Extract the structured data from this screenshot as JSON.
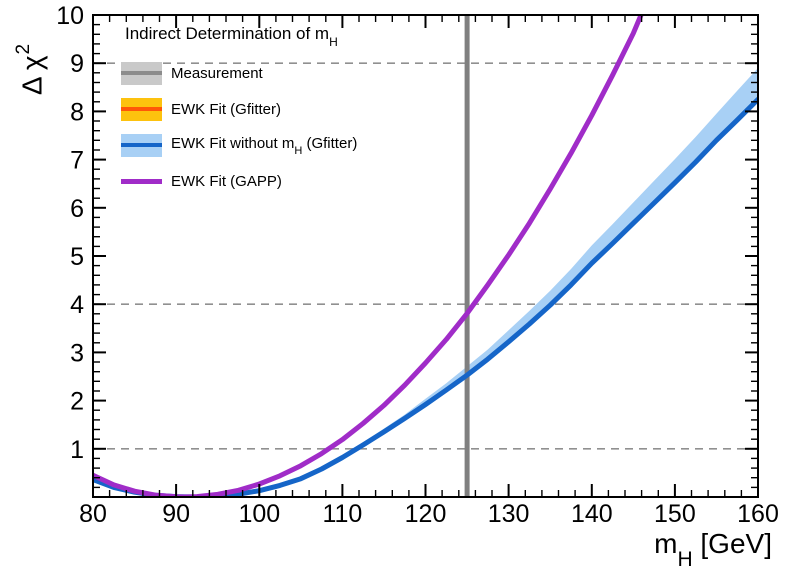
{
  "chart_data": {
    "type": "line",
    "title": "Indirect Determination of m_H",
    "xlabel": "m_H [GeV]",
    "ylabel": "Delta chi^2",
    "xlim": [
      80,
      160
    ],
    "ylim": [
      0,
      10
    ],
    "x_ticks": [
      80,
      90,
      100,
      110,
      120,
      130,
      140,
      150,
      160
    ],
    "y_ticks": [
      1,
      2,
      3,
      4,
      5,
      6,
      7,
      8,
      9,
      10
    ],
    "x_minor_step": 2,
    "y_minor_step": 0.2,
    "grid": "dashed horizontal lines at sigma levels only",
    "sigma_levels": [
      1,
      4,
      9
    ],
    "sigma_line_color": "#909090",
    "measurement": {
      "x": 125,
      "color": "#808080"
    },
    "series": [
      {
        "id": "ewk-fit-without-mh",
        "name": "EWK Fit without m_H (Gfitter)",
        "color": "#1565c8",
        "band_color": "#a8d0f5",
        "points": [
          [
            80,
            0.36
          ],
          [
            82.5,
            0.2
          ],
          [
            85,
            0.1
          ],
          [
            87.5,
            0.035
          ],
          [
            90,
            0.008
          ],
          [
            92.5,
            0.001
          ],
          [
            95,
            0.012
          ],
          [
            97.5,
            0.06
          ],
          [
            100,
            0.13
          ],
          [
            102.5,
            0.24
          ],
          [
            105,
            0.38
          ],
          [
            107.5,
            0.58
          ],
          [
            110,
            0.82
          ],
          [
            112.5,
            1.08
          ],
          [
            115,
            1.35
          ],
          [
            117.5,
            1.63
          ],
          [
            120,
            1.92
          ],
          [
            122.5,
            2.22
          ],
          [
            125,
            2.53
          ],
          [
            127.5,
            2.86
          ],
          [
            130,
            3.22
          ],
          [
            132.5,
            3.59
          ],
          [
            135,
            3.98
          ],
          [
            137.5,
            4.4
          ],
          [
            140,
            4.85
          ],
          [
            142.5,
            5.26
          ],
          [
            145,
            5.68
          ],
          [
            147.5,
            6.1
          ],
          [
            150,
            6.52
          ],
          [
            152.5,
            6.95
          ],
          [
            155,
            7.4
          ],
          [
            157.5,
            7.82
          ],
          [
            160,
            8.25
          ]
        ],
        "band_upper": [
          [
            100,
            0.14
          ],
          [
            102.5,
            0.25
          ],
          [
            105,
            0.4
          ],
          [
            107.5,
            0.61
          ],
          [
            110,
            0.87
          ],
          [
            112.5,
            1.14
          ],
          [
            115,
            1.42
          ],
          [
            117.5,
            1.71
          ],
          [
            120,
            2.04
          ],
          [
            122.5,
            2.36
          ],
          [
            125,
            2.71
          ],
          [
            127.5,
            3.06
          ],
          [
            130,
            3.46
          ],
          [
            132.5,
            3.86
          ],
          [
            135,
            4.28
          ],
          [
            137.5,
            4.73
          ],
          [
            140,
            5.22
          ],
          [
            142.5,
            5.66
          ],
          [
            145,
            6.11
          ],
          [
            147.5,
            6.56
          ],
          [
            150,
            7.01
          ],
          [
            152.5,
            7.47
          ],
          [
            155,
            7.95
          ],
          [
            157.5,
            8.43
          ],
          [
            160,
            8.9
          ]
        ]
      },
      {
        "id": "ewk-fit-gapp",
        "name": "EWK Fit (GAPP)",
        "color": "#a02cc8",
        "points": [
          [
            80,
            0.45
          ],
          [
            82.5,
            0.25
          ],
          [
            85,
            0.12
          ],
          [
            87.5,
            0.04
          ],
          [
            90,
            0.005
          ],
          [
            91,
            0
          ],
          [
            92.5,
            0.008
          ],
          [
            95,
            0.055
          ],
          [
            97.5,
            0.14
          ],
          [
            100,
            0.27
          ],
          [
            102.5,
            0.44
          ],
          [
            105,
            0.65
          ],
          [
            107.5,
            0.9
          ],
          [
            110,
            1.19
          ],
          [
            112.5,
            1.53
          ],
          [
            115,
            1.9
          ],
          [
            117.5,
            2.32
          ],
          [
            120,
            2.78
          ],
          [
            122.5,
            3.27
          ],
          [
            125,
            3.81
          ],
          [
            127.5,
            4.4
          ],
          [
            130,
            5.02
          ],
          [
            132.5,
            5.68
          ],
          [
            135,
            6.39
          ],
          [
            137.5,
            7.13
          ],
          [
            140,
            7.92
          ],
          [
            142.5,
            8.75
          ],
          [
            145,
            9.62
          ],
          [
            146.3,
            10.15
          ]
        ]
      }
    ]
  },
  "legend": {
    "title_pre": "Indirect Determination of m",
    "title_sub": "H",
    "items": [
      {
        "id": "measurement",
        "label": "Measurement",
        "band_color": "#c9c9c9",
        "line_color": "#8c8c8c"
      },
      {
        "id": "ewk-fit-gfitter",
        "label": "EWK Fit (Gfitter)",
        "band_color": "#fdc20e",
        "line_color": "#ff5708"
      },
      {
        "id": "ewk-fit-without-mh",
        "label_pre": "EWK Fit without m",
        "label_sub": "H",
        "label_post": " (Gfitter)",
        "band_color": "#a8d0f5",
        "line_color": "#1565c8"
      },
      {
        "id": "ewk-fit-gapp",
        "label": "EWK Fit (GAPP)",
        "line_color": "#a02cc8"
      }
    ]
  },
  "axes": {
    "y_label_pre": "Δ χ",
    "y_label_sup": "2",
    "x_label_pre": "m",
    "x_label_sub": "H",
    "x_label_post": " [GeV]"
  }
}
